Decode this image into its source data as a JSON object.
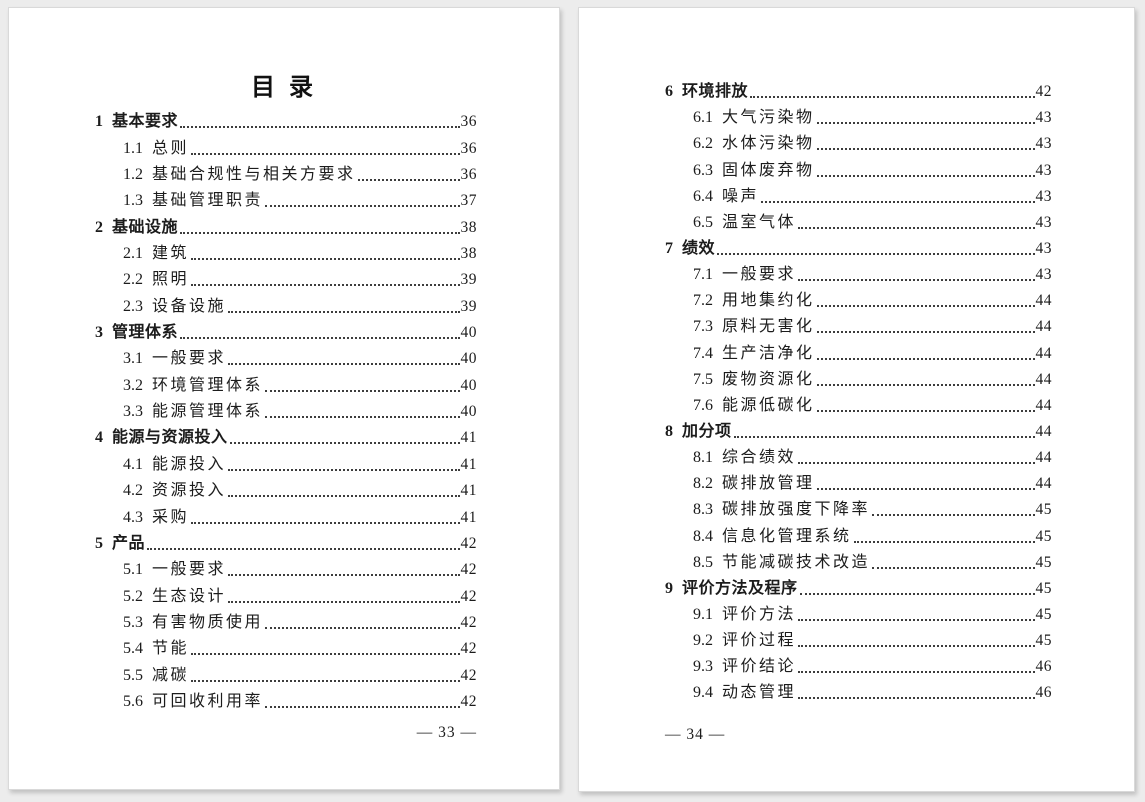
{
  "colors": {
    "background": "#ececec",
    "page": "#ffffff",
    "text": "#1c1c1c"
  },
  "toc": {
    "title": "目 录",
    "pages": [
      {
        "name": "page-33",
        "footer": "— 33 —",
        "entries": [
          {
            "level": 1,
            "number": "1",
            "label": "基本要求",
            "page": "36"
          },
          {
            "level": 2,
            "number": "1.1",
            "label": "总则",
            "page": "36"
          },
          {
            "level": 2,
            "number": "1.2",
            "label": "基础合规性与相关方要求",
            "page": "36"
          },
          {
            "level": 2,
            "number": "1.3",
            "label": "基础管理职责",
            "page": "37"
          },
          {
            "level": 1,
            "number": "2",
            "label": "基础设施",
            "page": "38"
          },
          {
            "level": 2,
            "number": "2.1",
            "label": "建筑",
            "page": "38"
          },
          {
            "level": 2,
            "number": "2.2",
            "label": "照明",
            "page": "39"
          },
          {
            "level": 2,
            "number": "2.3",
            "label": "设备设施",
            "page": "39"
          },
          {
            "level": 1,
            "number": "3",
            "label": "管理体系",
            "page": "40"
          },
          {
            "level": 2,
            "number": "3.1",
            "label": "一般要求",
            "page": "40"
          },
          {
            "level": 2,
            "number": "3.2",
            "label": "环境管理体系",
            "page": "40"
          },
          {
            "level": 2,
            "number": "3.3",
            "label": "能源管理体系",
            "page": "40"
          },
          {
            "level": 1,
            "number": "4",
            "label": "能源与资源投入",
            "page": "41"
          },
          {
            "level": 2,
            "number": "4.1",
            "label": "能源投入",
            "page": "41"
          },
          {
            "level": 2,
            "number": "4.2",
            "label": "资源投入",
            "page": "41"
          },
          {
            "level": 2,
            "number": "4.3",
            "label": "采购",
            "page": "41"
          },
          {
            "level": 1,
            "number": "5",
            "label": "产品",
            "page": "42"
          },
          {
            "level": 2,
            "number": "5.1",
            "label": "一般要求",
            "page": "42"
          },
          {
            "level": 2,
            "number": "5.2",
            "label": "生态设计",
            "page": "42"
          },
          {
            "level": 2,
            "number": "5.3",
            "label": "有害物质使用",
            "page": "42"
          },
          {
            "level": 2,
            "number": "5.4",
            "label": "节能",
            "page": "42"
          },
          {
            "level": 2,
            "number": "5.5",
            "label": "减碳",
            "page": "42"
          },
          {
            "level": 2,
            "number": "5.6",
            "label": "可回收利用率",
            "page": "42"
          }
        ]
      },
      {
        "name": "page-34",
        "footer": "— 34 —",
        "entries": [
          {
            "level": 1,
            "number": "6",
            "label": "环境排放",
            "page": "42"
          },
          {
            "level": 2,
            "number": "6.1",
            "label": "大气污染物",
            "page": "43"
          },
          {
            "level": 2,
            "number": "6.2",
            "label": "水体污染物",
            "page": "43"
          },
          {
            "level": 2,
            "number": "6.3",
            "label": "固体废弃物",
            "page": "43"
          },
          {
            "level": 2,
            "number": "6.4",
            "label": "噪声",
            "page": "43"
          },
          {
            "level": 2,
            "number": "6.5",
            "label": "温室气体",
            "page": "43"
          },
          {
            "level": 1,
            "number": "7",
            "label": "绩效",
            "page": "43"
          },
          {
            "level": 2,
            "number": "7.1",
            "label": "一般要求",
            "page": "43"
          },
          {
            "level": 2,
            "number": "7.2",
            "label": "用地集约化",
            "page": "44"
          },
          {
            "level": 2,
            "number": "7.3",
            "label": "原料无害化",
            "page": "44"
          },
          {
            "level": 2,
            "number": "7.4",
            "label": "生产洁净化",
            "page": "44"
          },
          {
            "level": 2,
            "number": "7.5",
            "label": "废物资源化",
            "page": "44"
          },
          {
            "level": 2,
            "number": "7.6",
            "label": "能源低碳化",
            "page": "44"
          },
          {
            "level": 1,
            "number": "8",
            "label": "加分项",
            "page": "44"
          },
          {
            "level": 2,
            "number": "8.1",
            "label": "综合绩效",
            "page": "44"
          },
          {
            "level": 2,
            "number": "8.2",
            "label": "碳排放管理",
            "page": "44"
          },
          {
            "level": 2,
            "number": "8.3",
            "label": "碳排放强度下降率",
            "page": "45"
          },
          {
            "level": 2,
            "number": "8.4",
            "label": "信息化管理系统",
            "page": "45"
          },
          {
            "level": 2,
            "number": "8.5",
            "label": "节能减碳技术改造",
            "page": "45"
          },
          {
            "level": 1,
            "number": "9",
            "label": "评价方法及程序",
            "page": "45"
          },
          {
            "level": 2,
            "number": "9.1",
            "label": "评价方法",
            "page": "45"
          },
          {
            "level": 2,
            "number": "9.2",
            "label": "评价过程",
            "page": "45"
          },
          {
            "level": 2,
            "number": "9.3",
            "label": "评价结论",
            "page": "46"
          },
          {
            "level": 2,
            "number": "9.4",
            "label": "动态管理",
            "page": "46"
          }
        ]
      }
    ]
  }
}
